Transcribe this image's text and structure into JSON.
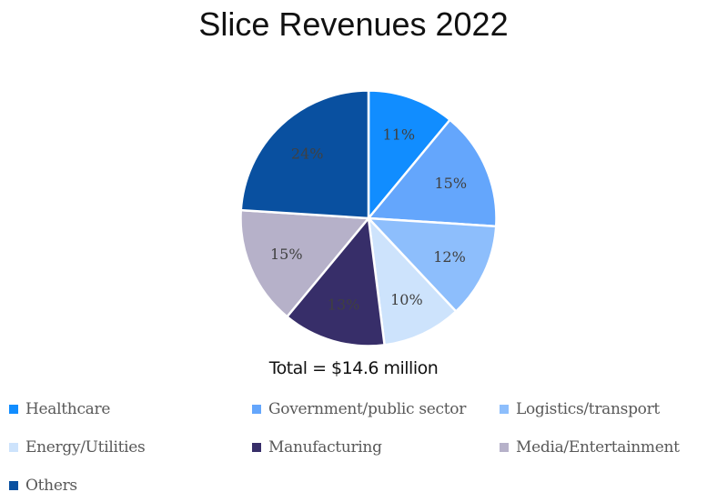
{
  "chart_data": {
    "type": "pie",
    "title": "Slice Revenues 2022",
    "annotation": "Total = $14.6 million",
    "legend_position": "bottom",
    "slices": [
      {
        "label": "Healthcare",
        "value": 11,
        "display": "11%",
        "color": "#118DFF"
      },
      {
        "label": "Government/public sector",
        "value": 15,
        "display": "15%",
        "color": "#64A6FC"
      },
      {
        "label": "Logistics/transport",
        "value": 12,
        "display": "12%",
        "color": "#8DBEFC"
      },
      {
        "label": "Energy/Utilities",
        "value": 10,
        "display": "10%",
        "color": "#CDE3FC"
      },
      {
        "label": "Manufacturing",
        "value": 13,
        "display": "13%",
        "color": "#372E69"
      },
      {
        "label": "Media/Entertainment",
        "value": 15,
        "display": "15%",
        "color": "#B6B1C9"
      },
      {
        "label": "Others",
        "value": 24,
        "display": "24%",
        "color": "#0950A0"
      }
    ]
  }
}
